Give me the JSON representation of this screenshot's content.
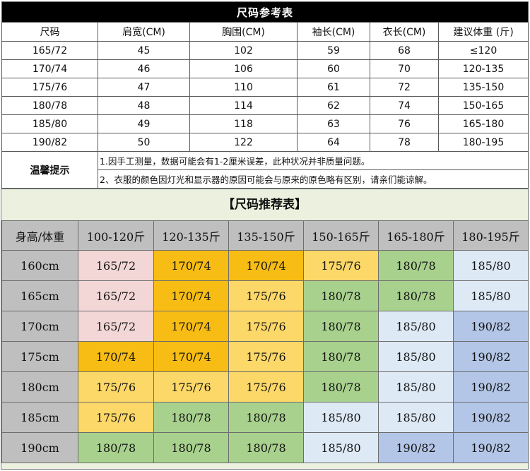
{
  "ref_table": {
    "title": "尺码参考表",
    "headers": [
      "尺码",
      "肩宽(CM)",
      "胸围(CM)",
      "袖长(CM)",
      "衣长(CM)",
      "建议体重 (斤)"
    ],
    "rows": [
      [
        "165/72",
        "45",
        "102",
        "59",
        "68",
        "≤120"
      ],
      [
        "170/74",
        "46",
        "106",
        "60",
        "70",
        "120-135"
      ],
      [
        "175/76",
        "47",
        "110",
        "61",
        "72",
        "135-150"
      ],
      [
        "180/78",
        "48",
        "114",
        "62",
        "74",
        "150-165"
      ],
      [
        "185/80",
        "49",
        "118",
        "63",
        "76",
        "165-180"
      ],
      [
        "190/82",
        "50",
        "122",
        "64",
        "78",
        "180-195"
      ]
    ],
    "tips_label": "温馨提示",
    "tips": [
      "1.因手工测量，数据可能会有1-2厘米误差，此种状况并非质量问题。",
      "2、衣服的颜色因灯光和显示器的原因可能会与原来的原色略有区别，请亲们能谅解。"
    ]
  },
  "rec_table": {
    "title": "【尺码推荐表】",
    "corner": "身高/体重",
    "weights": [
      "100-120斤",
      "120-135斤",
      "135-150斤",
      "150-165斤",
      "165-180斤",
      "180-195斤"
    ],
    "heights": [
      "160cm",
      "165cm",
      "170cm",
      "175cm",
      "180cm",
      "185cm",
      "190cm"
    ],
    "cells": [
      [
        "165/72",
        "170/74",
        "170/74",
        "175/76",
        "180/78",
        "185/80"
      ],
      [
        "165/72",
        "170/74",
        "175/76",
        "180/78",
        "180/78",
        "185/80"
      ],
      [
        "165/72",
        "170/74",
        "175/76",
        "180/78",
        "185/80",
        "190/82"
      ],
      [
        "170/74",
        "170/74",
        "175/76",
        "180/78",
        "185/80",
        "190/82"
      ],
      [
        "175/76",
        "175/76",
        "175/76",
        "180/78",
        "185/80",
        "190/82"
      ],
      [
        "175/76",
        "180/78",
        "180/78",
        "185/80",
        "185/80",
        "190/82"
      ],
      [
        "180/78",
        "180/78",
        "180/78",
        "185/80",
        "190/82",
        "190/82"
      ]
    ],
    "size_colors": {
      "165/72": "#f2d7d6",
      "170/74": "#f8bd14",
      "175/76": "#fcd868",
      "180/78": "#a9d18e",
      "185/80": "#dde9f5",
      "190/82": "#b4c6e7"
    }
  }
}
